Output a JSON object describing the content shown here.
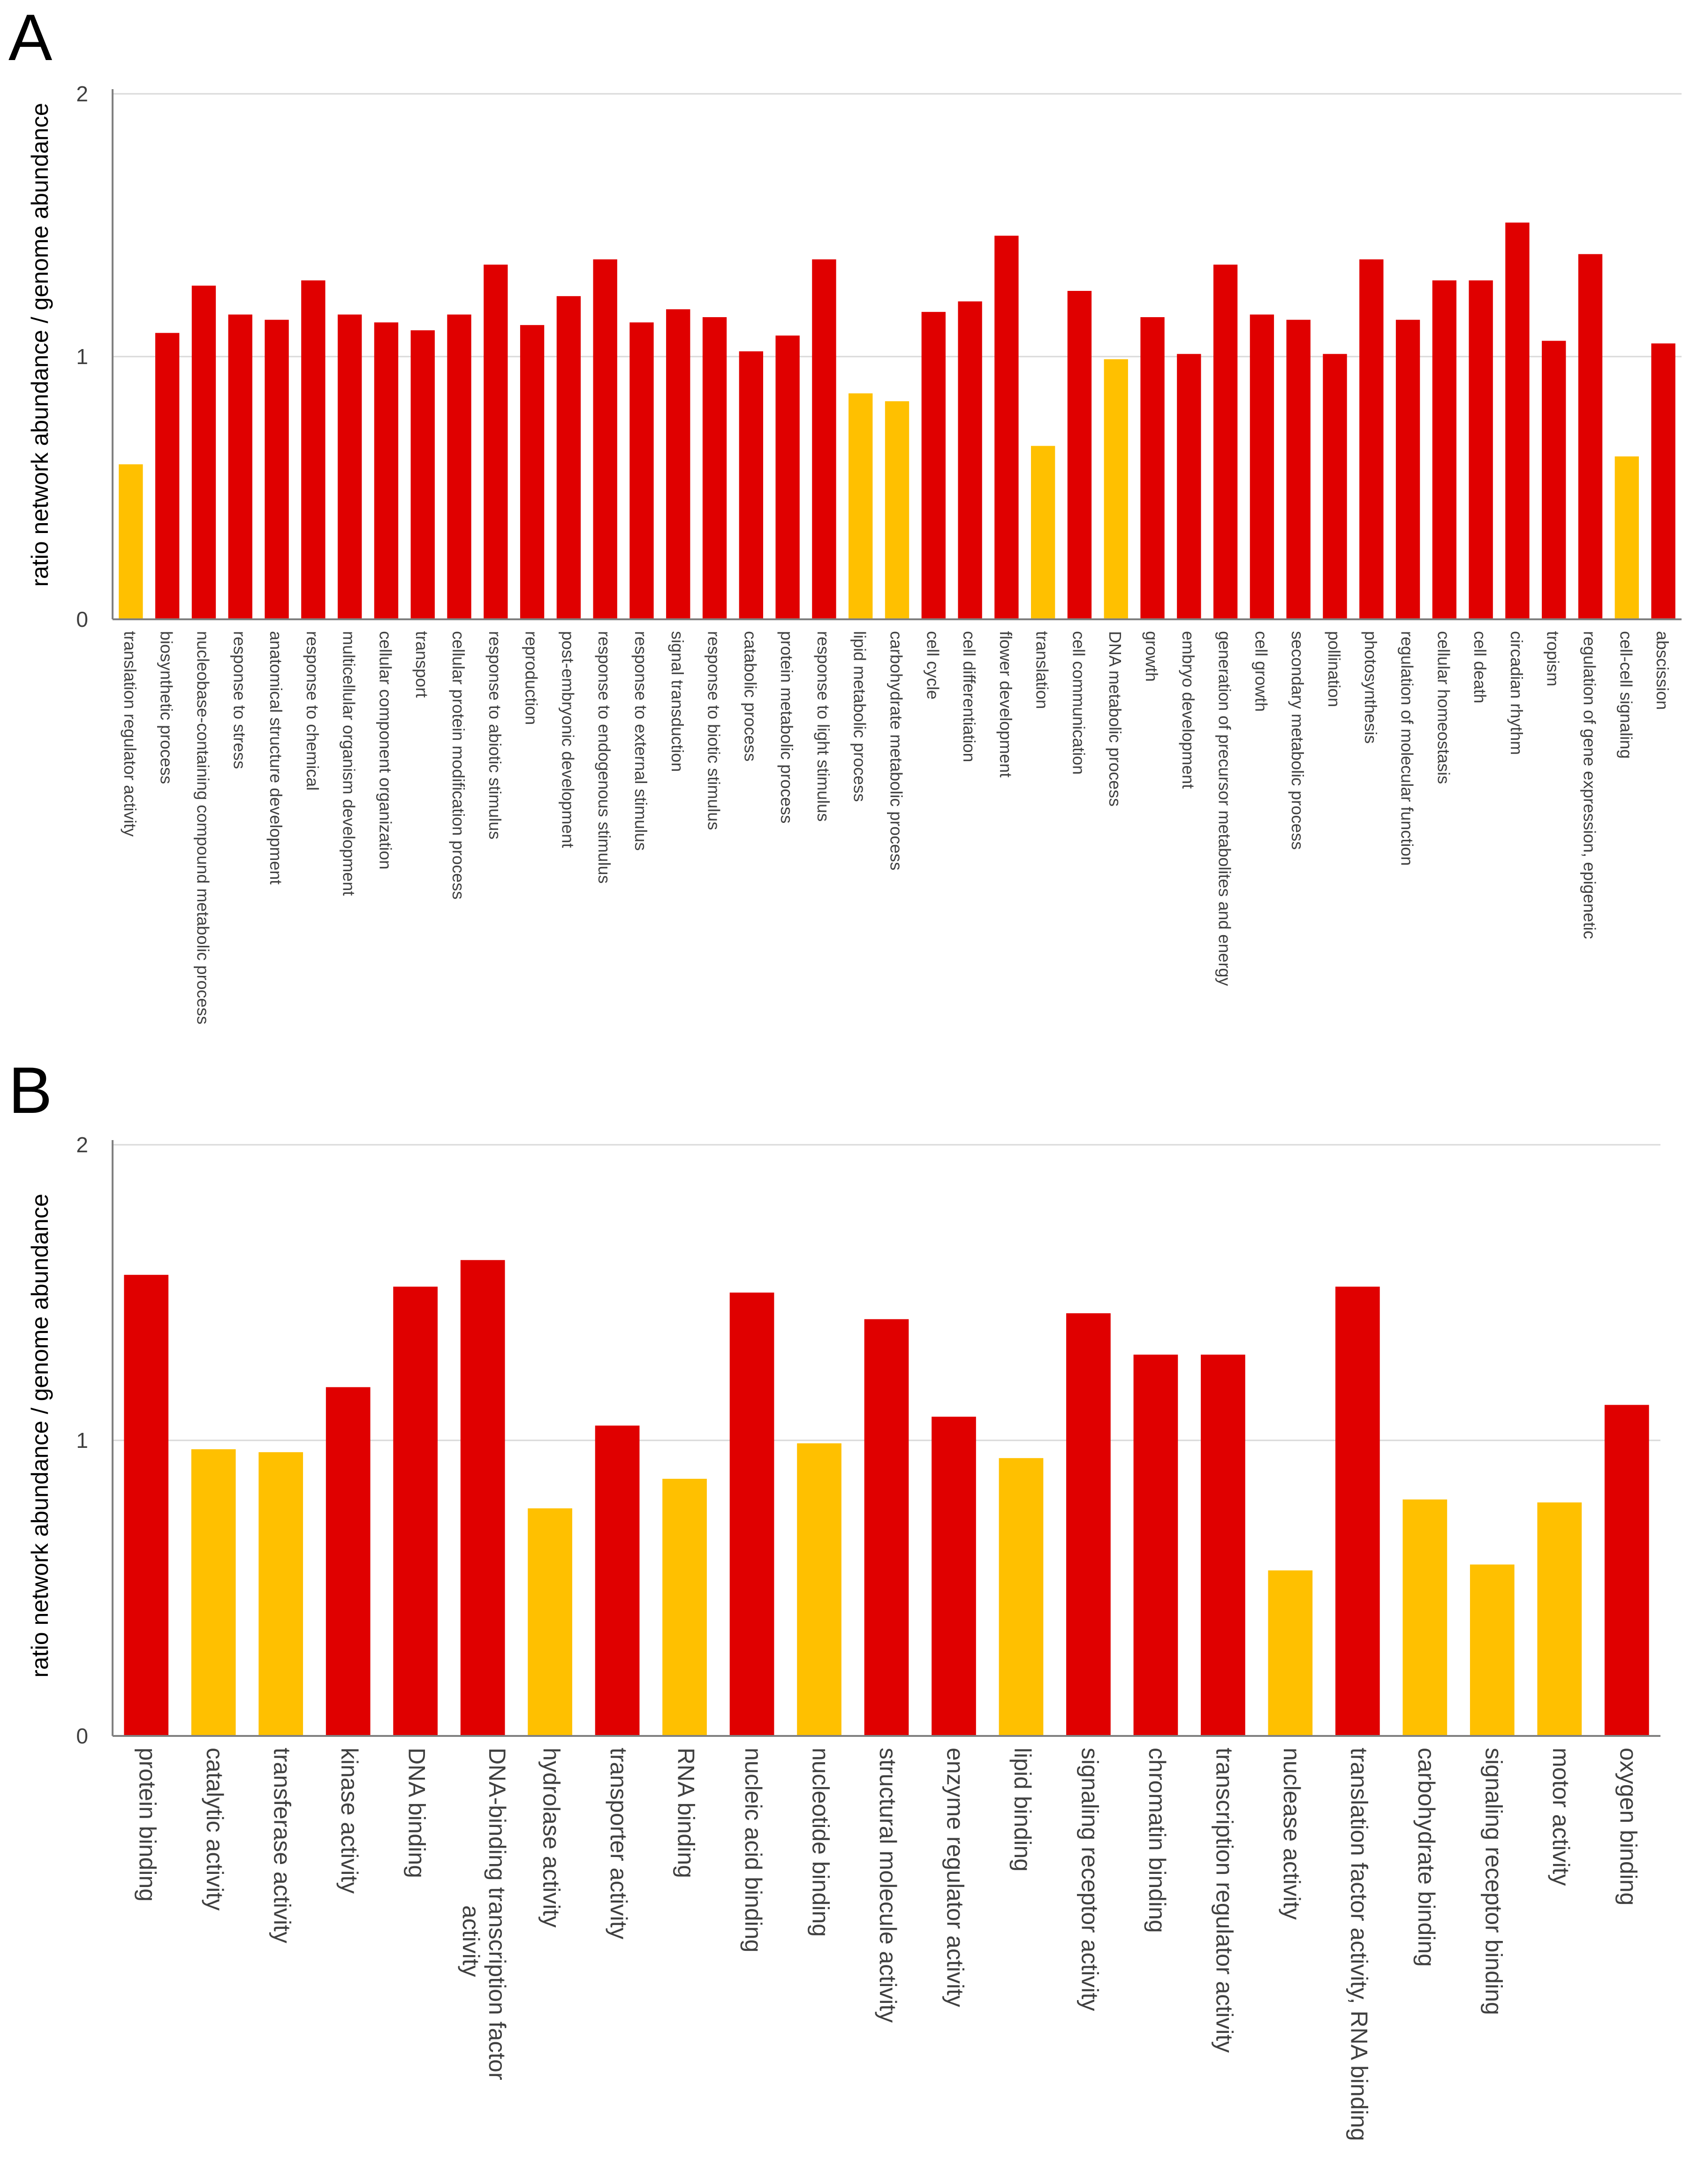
{
  "chart_data": [
    {
      "panel": "A",
      "type": "bar",
      "title": "",
      "xlabel": "",
      "ylabel": "ratio network abundance / genome abundance",
      "ylim": [
        0,
        2
      ],
      "yticks": [
        "0",
        "1",
        "2"
      ],
      "grid": true,
      "colors": {
        "above": "#e00000",
        "below": "#ffc000"
      },
      "categories": [
        "translation regulator activity",
        "biosynthetic process",
        "nucleobase-containing compound metabolic process",
        "response to stress",
        "anatomical structure development",
        "response to chemical",
        "multicellular organism development",
        "cellular component organization",
        "transport",
        "cellular protein modification process",
        "response to abiotic stimulus",
        "reproduction",
        "post-embryonic development",
        "response to endogenous stimulus",
        "response to external stimulus",
        "signal transduction",
        "response to biotic stimulus",
        "catabolic process",
        "protein metabolic process",
        "response to light stimulus",
        "lipid metabolic process",
        "carbohydrate metabolic process",
        "cell cycle",
        "cell differentiation",
        "flower development",
        "translation",
        "cell communication",
        "DNA metabolic process",
        "growth",
        "embryo development",
        "generation of precursor metabolites and energy",
        "cell growth",
        "secondary metabolic process",
        "pollination",
        "photosynthesis",
        "regulation of molecular function",
        "cellular homeostasis",
        "cell death",
        "circadian rhythm",
        "tropism",
        "regulation of gene expression, epigenetic",
        "cell-cell signaling",
        "abscission"
      ],
      "values": [
        0.59,
        1.09,
        1.27,
        1.16,
        1.14,
        1.29,
        1.16,
        1.13,
        1.1,
        1.16,
        1.35,
        1.12,
        1.23,
        1.37,
        1.13,
        1.18,
        1.15,
        1.02,
        1.08,
        1.37,
        0.86,
        0.83,
        1.17,
        1.21,
        1.46,
        0.66,
        1.25,
        0.99,
        1.15,
        1.01,
        1.35,
        1.16,
        1.14,
        1.01,
        1.37,
        1.14,
        1.29,
        1.29,
        1.51,
        1.06,
        1.39,
        0.62,
        1.05
      ]
    },
    {
      "panel": "B",
      "type": "bar",
      "title": "",
      "xlabel": "",
      "ylabel": "ratio network abundance / genome abundance",
      "ylim": [
        0,
        2
      ],
      "yticks": [
        "0",
        "1",
        "2"
      ],
      "grid": true,
      "colors": {
        "above": "#e00000",
        "below": "#ffc000"
      },
      "categories": [
        "protein binding",
        "catalytic activity",
        "transferase activity",
        "kinase activity",
        "DNA binding",
        "DNA-binding transcription factor activity",
        "hydrolase activity",
        "transporter activity",
        "RNA binding",
        "nucleic acid binding",
        "nucleotide binding",
        "structural molecule activity",
        "enzyme regulator activity",
        "lipid binding",
        "signaling receptor activity",
        "chromatin binding",
        "transcription regulator activity",
        "nuclease activity",
        "translation factor activity, RNA binding",
        "carbohydrate binding",
        "signaling receptor binding",
        "motor activity",
        "oxygen binding"
      ],
      "category_lines": [
        [
          "protein binding"
        ],
        [
          "catalytic activity"
        ],
        [
          "transferase activity"
        ],
        [
          "kinase activity"
        ],
        [
          "DNA binding"
        ],
        [
          "DNA-binding transcription factor",
          "activity"
        ],
        [
          "hydrolase activity"
        ],
        [
          "transporter activity"
        ],
        [
          "RNA binding"
        ],
        [
          "nucleic acid binding"
        ],
        [
          "nucleotide binding"
        ],
        [
          "structural molecule activity"
        ],
        [
          "enzyme regulator activity"
        ],
        [
          "lipid binding"
        ],
        [
          "signaling receptor activity"
        ],
        [
          "chromatin binding"
        ],
        [
          "transcription regulator activity"
        ],
        [
          "nuclease activity"
        ],
        [
          "translation factor activity, RNA binding"
        ],
        [
          "carbohydrate binding"
        ],
        [
          "signaling receptor binding"
        ],
        [
          "motor activity"
        ],
        [
          "oxygen binding"
        ]
      ],
      "values": [
        1.56,
        0.97,
        0.96,
        1.18,
        1.52,
        1.61,
        0.77,
        1.05,
        0.87,
        1.5,
        0.99,
        1.41,
        1.08,
        0.94,
        1.43,
        1.29,
        1.29,
        0.56,
        1.52,
        0.8,
        0.58,
        0.79,
        1.12
      ]
    }
  ]
}
